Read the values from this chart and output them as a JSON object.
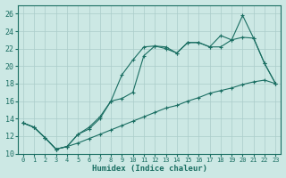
{
  "xlabel": "Humidex (Indice chaleur)",
  "bg_color": "#cce8e4",
  "grid_color": "#aaccca",
  "line_color": "#1a6e62",
  "xlim": [
    -0.5,
    23.5
  ],
  "ylim": [
    10,
    27
  ],
  "xticks": [
    0,
    1,
    2,
    3,
    4,
    5,
    6,
    7,
    8,
    9,
    10,
    11,
    12,
    13,
    14,
    15,
    16,
    17,
    18,
    19,
    20,
    21,
    22,
    23
  ],
  "yticks": [
    10,
    12,
    14,
    16,
    18,
    20,
    22,
    24,
    26
  ],
  "line_straight_x": [
    0,
    1,
    2,
    3,
    4,
    5,
    6,
    7,
    8,
    9,
    10,
    11,
    12,
    13,
    14,
    15,
    16,
    17,
    18,
    19,
    20,
    21,
    22,
    23
  ],
  "line_straight_y": [
    13.5,
    13.0,
    11.8,
    10.5,
    10.8,
    11.2,
    11.7,
    12.2,
    12.7,
    13.2,
    13.7,
    14.2,
    14.7,
    15.2,
    15.5,
    16.0,
    16.4,
    16.9,
    17.2,
    17.5,
    17.9,
    18.2,
    18.4,
    18.0
  ],
  "line_mid_x": [
    0,
    1,
    2,
    3,
    4,
    5,
    6,
    7,
    8,
    9,
    10,
    11,
    12,
    13,
    14,
    15,
    16,
    17,
    18,
    19,
    20,
    21,
    22,
    23
  ],
  "line_mid_y": [
    13.5,
    13.0,
    11.8,
    10.5,
    10.8,
    12.2,
    13.0,
    14.2,
    16.0,
    16.3,
    17.0,
    21.2,
    22.3,
    22.2,
    21.5,
    22.7,
    22.7,
    22.2,
    22.2,
    23.0,
    23.3,
    23.2,
    20.3,
    18.0
  ],
  "line_upper_x": [
    0,
    1,
    2,
    3,
    4,
    5,
    6,
    7,
    8,
    9,
    10,
    11,
    12,
    13,
    14,
    15,
    16,
    17,
    18,
    19,
    20,
    21,
    22,
    23
  ],
  "line_upper_y": [
    13.5,
    13.0,
    11.8,
    10.5,
    10.8,
    12.2,
    12.8,
    14.0,
    16.0,
    19.0,
    20.7,
    22.2,
    22.3,
    22.0,
    21.5,
    22.7,
    22.7,
    22.2,
    23.5,
    23.0,
    25.8,
    23.2,
    20.3,
    18.0
  ]
}
